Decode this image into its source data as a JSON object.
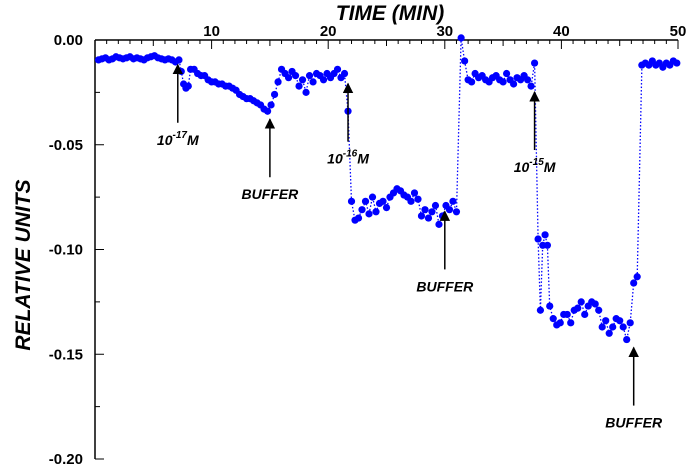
{
  "chart_data": {
    "type": "scatter",
    "title": "",
    "xlabel": "TIME (MIN)",
    "ylabel": "RELATIVE UNITS",
    "xlim": [
      0,
      50
    ],
    "ylim": [
      -0.2,
      0.0
    ],
    "x_axis_position": "top",
    "x_ticks": [
      10,
      20,
      30,
      40,
      50
    ],
    "x_tick_labels": [
      "10",
      "20",
      "30",
      "40",
      "50"
    ],
    "y_ticks": [
      0.0,
      -0.05,
      -0.1,
      -0.15,
      -0.2
    ],
    "y_tick_labels": [
      "0.00",
      "-0.05",
      "-0.10",
      "-0.15",
      "-0.20"
    ],
    "grid": false,
    "legend": "none",
    "series": [
      {
        "color": "#0000ff",
        "marker": "circle",
        "line_style": "dotted",
        "points": [
          [
            0.3,
            -0.0095
          ],
          [
            0.6,
            -0.009
          ],
          [
            0.9,
            -0.0085
          ],
          [
            1.2,
            -0.0095
          ],
          [
            1.5,
            -0.009
          ],
          [
            1.8,
            -0.008
          ],
          [
            2.1,
            -0.0085
          ],
          [
            2.4,
            -0.009
          ],
          [
            2.7,
            -0.0085
          ],
          [
            3.0,
            -0.008
          ],
          [
            3.3,
            -0.009
          ],
          [
            3.6,
            -0.0085
          ],
          [
            3.9,
            -0.009
          ],
          [
            4.2,
            -0.0095
          ],
          [
            4.5,
            -0.0085
          ],
          [
            4.8,
            -0.008
          ],
          [
            5.1,
            -0.0075
          ],
          [
            5.4,
            -0.0085
          ],
          [
            5.7,
            -0.009
          ],
          [
            6.0,
            -0.0095
          ],
          [
            6.3,
            -0.009
          ],
          [
            6.6,
            -0.0095
          ],
          [
            6.9,
            -0.0105
          ],
          [
            7.2,
            -0.0095
          ],
          [
            7.4,
            -0.015
          ],
          [
            7.6,
            -0.021
          ],
          [
            7.8,
            -0.023
          ],
          [
            8.0,
            -0.022
          ],
          [
            8.2,
            -0.014
          ],
          [
            8.5,
            -0.014
          ],
          [
            8.8,
            -0.016
          ],
          [
            9.1,
            -0.017
          ],
          [
            9.4,
            -0.017
          ],
          [
            9.7,
            -0.019
          ],
          [
            10.0,
            -0.02
          ],
          [
            10.3,
            -0.02
          ],
          [
            10.6,
            -0.021
          ],
          [
            10.9,
            -0.021
          ],
          [
            11.2,
            -0.022
          ],
          [
            11.5,
            -0.022
          ],
          [
            11.8,
            -0.023
          ],
          [
            12.1,
            -0.024
          ],
          [
            12.4,
            -0.026
          ],
          [
            12.7,
            -0.027
          ],
          [
            13.0,
            -0.028
          ],
          [
            13.3,
            -0.028
          ],
          [
            13.6,
            -0.029
          ],
          [
            13.9,
            -0.03
          ],
          [
            14.2,
            -0.031
          ],
          [
            14.5,
            -0.033
          ],
          [
            14.8,
            -0.034
          ],
          [
            15.1,
            -0.031
          ],
          [
            15.4,
            -0.026
          ],
          [
            15.7,
            -0.02
          ],
          [
            16.0,
            -0.014
          ],
          [
            16.3,
            -0.016
          ],
          [
            16.6,
            -0.018
          ],
          [
            16.9,
            -0.015
          ],
          [
            17.2,
            -0.017
          ],
          [
            17.5,
            -0.022
          ],
          [
            17.8,
            -0.019
          ],
          [
            18.1,
            -0.025
          ],
          [
            18.4,
            -0.017
          ],
          [
            18.7,
            -0.02
          ],
          [
            19.0,
            -0.016
          ],
          [
            19.3,
            -0.017
          ],
          [
            19.6,
            -0.019
          ],
          [
            19.9,
            -0.016
          ],
          [
            20.2,
            -0.018
          ],
          [
            20.5,
            -0.016
          ],
          [
            20.8,
            -0.014
          ],
          [
            21.1,
            -0.018
          ],
          [
            21.4,
            -0.016
          ],
          [
            21.7,
            -0.034
          ],
          [
            22.0,
            -0.077
          ],
          [
            22.3,
            -0.086
          ],
          [
            22.6,
            -0.085
          ],
          [
            22.9,
            -0.081
          ],
          [
            23.2,
            -0.077
          ],
          [
            23.5,
            -0.083
          ],
          [
            23.8,
            -0.075
          ],
          [
            24.1,
            -0.082
          ],
          [
            24.4,
            -0.078
          ],
          [
            24.7,
            -0.077
          ],
          [
            25.0,
            -0.08
          ],
          [
            25.3,
            -0.075
          ],
          [
            25.6,
            -0.073
          ],
          [
            25.9,
            -0.071
          ],
          [
            26.2,
            -0.072
          ],
          [
            26.5,
            -0.074
          ],
          [
            26.8,
            -0.075
          ],
          [
            27.1,
            -0.077
          ],
          [
            27.4,
            -0.073
          ],
          [
            27.7,
            -0.076
          ],
          [
            28.0,
            -0.084
          ],
          [
            28.3,
            -0.081
          ],
          [
            28.6,
            -0.085
          ],
          [
            28.9,
            -0.082
          ],
          [
            29.2,
            -0.079
          ],
          [
            29.5,
            -0.088
          ],
          [
            29.8,
            -0.084
          ],
          [
            30.1,
            -0.079
          ],
          [
            30.4,
            -0.081
          ],
          [
            30.7,
            -0.077
          ],
          [
            31.0,
            -0.082
          ],
          [
            31.4,
            0.001
          ],
          [
            31.7,
            -0.01
          ],
          [
            32.0,
            -0.019
          ],
          [
            32.3,
            -0.02
          ],
          [
            32.6,
            -0.016
          ],
          [
            32.9,
            -0.018
          ],
          [
            33.2,
            -0.017
          ],
          [
            33.5,
            -0.019
          ],
          [
            33.8,
            -0.02
          ],
          [
            34.1,
            -0.018
          ],
          [
            34.4,
            -0.017
          ],
          [
            34.7,
            -0.019
          ],
          [
            35.0,
            -0.02
          ],
          [
            35.3,
            -0.016
          ],
          [
            35.6,
            -0.019
          ],
          [
            35.9,
            -0.021
          ],
          [
            36.2,
            -0.018
          ],
          [
            36.5,
            -0.019
          ],
          [
            36.8,
            -0.017
          ],
          [
            37.1,
            -0.019
          ],
          [
            37.4,
            -0.022
          ],
          [
            37.7,
            -0.011
          ],
          [
            38.0,
            -0.095
          ],
          [
            38.2,
            -0.129
          ],
          [
            38.4,
            -0.098
          ],
          [
            38.6,
            -0.093
          ],
          [
            38.8,
            -0.098
          ],
          [
            39.0,
            -0.127
          ],
          [
            39.3,
            -0.133
          ],
          [
            39.6,
            -0.136
          ],
          [
            39.9,
            -0.135
          ],
          [
            40.2,
            -0.131
          ],
          [
            40.5,
            -0.131
          ],
          [
            40.8,
            -0.135
          ],
          [
            41.1,
            -0.129
          ],
          [
            41.4,
            -0.128
          ],
          [
            41.7,
            -0.125
          ],
          [
            42.0,
            -0.131
          ],
          [
            42.3,
            -0.127
          ],
          [
            42.6,
            -0.125
          ],
          [
            42.9,
            -0.126
          ],
          [
            43.2,
            -0.129
          ],
          [
            43.5,
            -0.137
          ],
          [
            43.8,
            -0.134
          ],
          [
            44.1,
            -0.14
          ],
          [
            44.4,
            -0.137
          ],
          [
            44.7,
            -0.133
          ],
          [
            45.0,
            -0.134
          ],
          [
            45.3,
            -0.137
          ],
          [
            45.6,
            -0.143
          ],
          [
            45.9,
            -0.135
          ],
          [
            46.2,
            -0.116
          ],
          [
            46.5,
            -0.113
          ],
          [
            46.9,
            -0.012
          ],
          [
            47.2,
            -0.011
          ],
          [
            47.5,
            -0.012
          ],
          [
            47.8,
            -0.01
          ],
          [
            48.1,
            -0.012
          ],
          [
            48.4,
            -0.011
          ],
          [
            48.7,
            -0.013
          ],
          [
            49.0,
            -0.011
          ],
          [
            49.3,
            -0.012
          ],
          [
            49.6,
            -0.01
          ],
          [
            49.9,
            -0.011
          ]
        ]
      }
    ],
    "annotations": [
      {
        "text": "10",
        "sup": "-17",
        "suffix": "M",
        "arrow_x": 7.1,
        "arrow_y": -0.008
      },
      {
        "text": "BUFFER",
        "sup": "",
        "suffix": "",
        "arrow_x": 15.0,
        "arrow_y": -0.034
      },
      {
        "text": "10",
        "sup": "-16",
        "suffix": "M",
        "arrow_x": 21.7,
        "arrow_y": -0.017
      },
      {
        "text": "BUFFER",
        "sup": "",
        "suffix": "",
        "arrow_x": 30.0,
        "arrow_y": -0.078
      },
      {
        "text": "10",
        "sup": "-15",
        "suffix": "M",
        "arrow_x": 37.7,
        "arrow_y": -0.021
      },
      {
        "text": "BUFFER",
        "sup": "",
        "suffix": "",
        "arrow_x": 46.2,
        "arrow_y": -0.143
      }
    ]
  }
}
